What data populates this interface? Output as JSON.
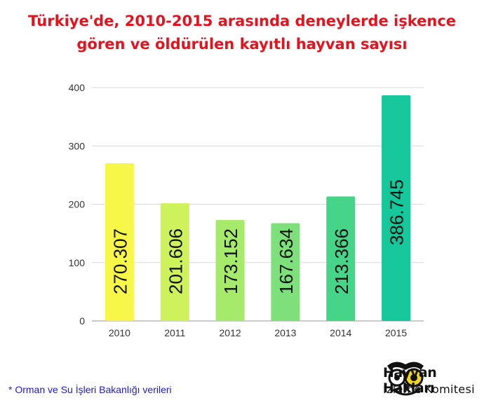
{
  "title": {
    "line1": "Türkiye'de, 2010-2015 arasında deneylerde işkence",
    "line2": "gören ve öldürülen kayıtlı hayvan sayısı"
  },
  "footnote": "* Orman ve Su İşleri Bakanlığı verileri",
  "logo": {
    "line1": "Hayvan Hakları",
    "line2": "İzleme Komitesi",
    "icon": "owl-icon"
  },
  "chart_data": {
    "type": "bar",
    "categories": [
      "2010",
      "2011",
      "2012",
      "2013",
      "2014",
      "2015"
    ],
    "values": [
      270.307,
      201.606,
      173.152,
      167.634,
      213.366,
      386.745
    ],
    "data_labels": [
      "270.307",
      "201.606",
      "173.152",
      "167.634",
      "213.366",
      "386.745"
    ],
    "bar_colors": [
      "#f7f74a",
      "#cdf25b",
      "#a6ea6b",
      "#7ee07a",
      "#45d488",
      "#15c79a"
    ],
    "yticks": [
      "0",
      "100",
      "200",
      "300",
      "400"
    ],
    "ylim": [
      0,
      400
    ],
    "grid": true,
    "legend": "none"
  }
}
